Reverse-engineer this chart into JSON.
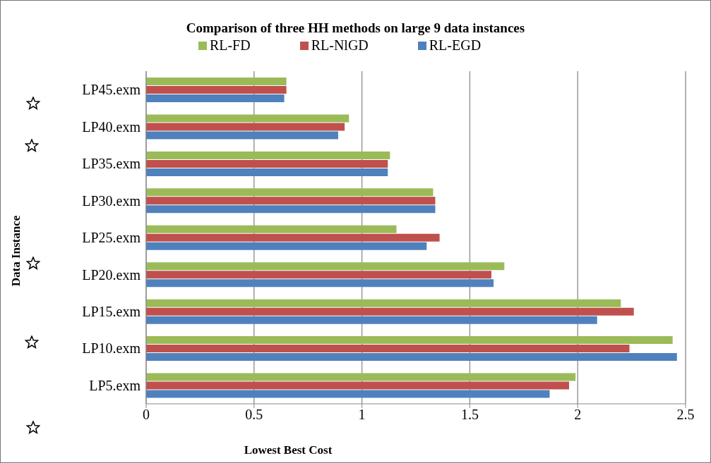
{
  "chart_data": {
    "type": "bar",
    "orientation": "horizontal",
    "title": "Comparison of three HH methods on large 9 data instances",
    "xlabel": "Lowest Best Cost",
    "ylabel": "Data Instance",
    "categories": [
      "LP45.exm",
      "LP40.exm",
      "LP35.exm",
      "LP30.exm",
      "LP25.exm",
      "LP20.exm",
      "LP15.exm",
      "LP10.exm",
      "LP5.exm"
    ],
    "series": [
      {
        "name": "RL-FD",
        "color": "#9bbb59",
        "values": [
          0.65,
          0.94,
          1.13,
          1.33,
          1.16,
          1.66,
          2.2,
          2.44,
          1.99
        ]
      },
      {
        "name": "RL-NlGD",
        "color": "#c0504d",
        "values": [
          0.65,
          0.92,
          1.12,
          1.34,
          1.36,
          1.6,
          2.26,
          2.24,
          1.96
        ]
      },
      {
        "name": "RL-EGD",
        "color": "#4f81bd",
        "values": [
          0.64,
          0.89,
          1.12,
          1.34,
          1.3,
          1.61,
          2.09,
          2.46,
          1.87
        ]
      }
    ],
    "xlim": [
      0,
      2.5
    ],
    "xticks": [
      0,
      0.5,
      1,
      1.5,
      2,
      2.5
    ],
    "grid": "x",
    "legend": "top"
  }
}
